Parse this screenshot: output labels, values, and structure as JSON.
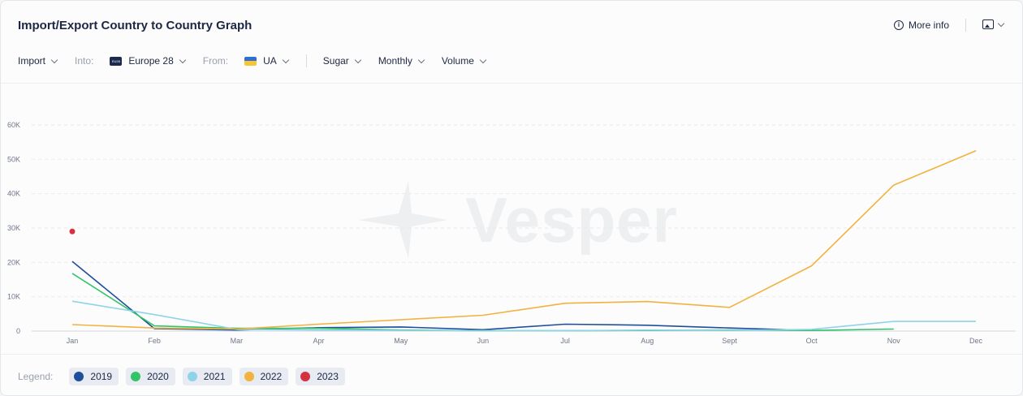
{
  "header": {
    "title": "Import/Export Country to Country Graph",
    "more_info": "More info",
    "info_icon": "info-icon",
    "export_icon": "image-icon"
  },
  "filters": {
    "direction": "Import",
    "into_label": "Into:",
    "into_flag": "EU28",
    "into_value": "Europe 28",
    "from_label": "From:",
    "from_value": "UA",
    "commodity": "Sugar",
    "period": "Monthly",
    "measure": "Volume"
  },
  "watermark": "Vesper",
  "legend": {
    "label": "Legend:",
    "items": [
      "2019",
      "2020",
      "2021",
      "2022",
      "2023"
    ]
  },
  "colors": {
    "2019": "#1f4e9c",
    "2020": "#33c46a",
    "2021": "#8fd3ea",
    "2022": "#f2b23e",
    "2023": "#d33340"
  },
  "chart_data": {
    "type": "line",
    "title": "",
    "xlabel": "",
    "ylabel": "",
    "categories": [
      "Jan",
      "Feb",
      "Mar",
      "Apr",
      "May",
      "Jun",
      "Jul",
      "Aug",
      "Sept",
      "Oct",
      "Nov",
      "Dec"
    ],
    "y_ticks": [
      "0",
      "10K",
      "20K",
      "30K",
      "40K",
      "50K",
      "60K"
    ],
    "ylim": [
      0,
      60000
    ],
    "grid": true,
    "legend_position": "bottom-left",
    "series": [
      {
        "name": "2019",
        "values": [
          20300,
          700,
          300,
          1000,
          1200,
          400,
          2000,
          1700,
          900,
          200,
          null,
          null
        ]
      },
      {
        "name": "2020",
        "values": [
          16800,
          1500,
          800,
          800,
          300,
          100,
          100,
          200,
          300,
          200,
          600,
          null
        ]
      },
      {
        "name": "2021",
        "values": [
          8700,
          4800,
          500,
          300,
          200,
          100,
          100,
          300,
          200,
          500,
          2800,
          2800
        ]
      },
      {
        "name": "2022",
        "values": [
          1900,
          900,
          600,
          2000,
          3300,
          4600,
          8100,
          8600,
          6900,
          19000,
          42500,
          52500
        ]
      },
      {
        "name": "2023",
        "values": [
          29000,
          null,
          null,
          null,
          null,
          null,
          null,
          null,
          null,
          null,
          null,
          null
        ]
      }
    ]
  }
}
